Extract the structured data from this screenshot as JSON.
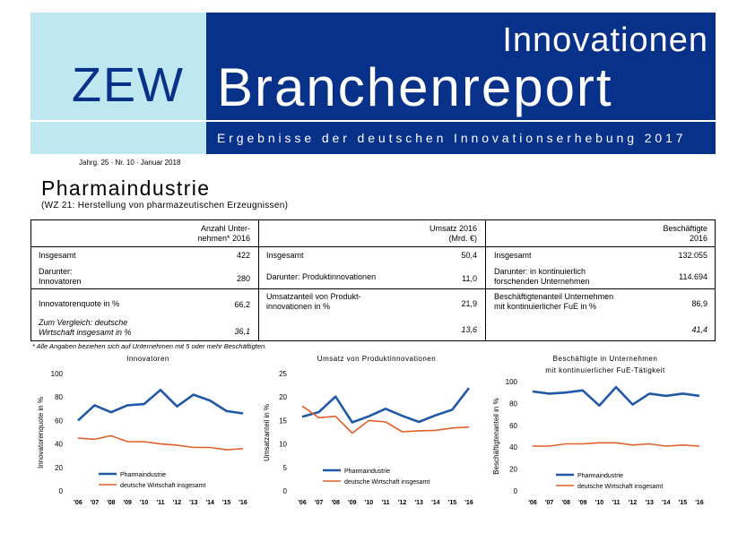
{
  "header": {
    "logo": "ZEW",
    "title_line1": "Innovationen",
    "title_line2": "Branchenreport",
    "subtitle": "Ergebnisse der deutschen Innovationserhebung 2017"
  },
  "issue_line": "Jahrg. 25 · Nr. 10 · Januar 2018",
  "title": "Pharmaindustrie",
  "subtitle": "(WZ 21: Herstellung von pharmazeutischen Erzeugnissen)",
  "table": {
    "col1_header_a": "Anzahl Unter-",
    "col1_header_b": "nehmen* 2016",
    "col2_header_a": "Umsatz 2016",
    "col2_header_b": "(Mrd. €)",
    "col3_header_a": "Beschäftigte",
    "col3_header_b": "2016",
    "r1": {
      "l1": "Insgesamt",
      "v1": "422",
      "l2": "Insgesamt",
      "v2": "50,4",
      "l3": "Insgesamt",
      "v3": "132.055"
    },
    "r2": {
      "l1a": "Darunter:",
      "l1b": "Innovatoren",
      "v1": "280",
      "l2": "Darunter: Produktinnovationen",
      "v2": "11,0",
      "l3a": "Darunter: in kontinuierlich",
      "l3b": "forschenden Unternehmen",
      "v3": "114.694"
    },
    "r3": {
      "l1": "Innovatorenquote in %",
      "v1": "66,2",
      "l2a": "Umsatzanteil von Produkt-",
      "l2b": "innovationen in %",
      "v2": "21,9",
      "l3a": "Beschäftigtenanteil Unternehmen",
      "l3b": "mit kontinuierlicher FuE in %",
      "v3": "86,9"
    },
    "r4": {
      "l1a": "Zum Vergleich: deutsche",
      "l1b": "Wirtschaft insgesamt in %",
      "v1": "36,1",
      "v2": "13,6",
      "v3": "41,4"
    }
  },
  "footnote": "* Alle Angaben beziehen sich auf Unternehmen mit 5 oder mehr Beschäftigten.",
  "colors": {
    "pharma": "#2158a8",
    "economy": "#e0602a",
    "header_dark": "#08318a",
    "header_light": "#bfe7f0"
  },
  "chart_data": [
    {
      "type": "line",
      "title": "Innovatoren",
      "title_line2": "",
      "ylabel": "Innovatorenquote in %",
      "x": [
        "'06",
        "'07",
        "'08",
        "'09",
        "'10",
        "'11",
        "'12",
        "'13",
        "'14",
        "'15",
        "'16"
      ],
      "ylim": [
        0,
        100
      ],
      "yticks": [
        0,
        20,
        40,
        60,
        80,
        100
      ],
      "series": [
        {
          "name": "Pharmaindustrie",
          "values": [
            60,
            73,
            67,
            73,
            74,
            86,
            72,
            82,
            77,
            68,
            66
          ]
        },
        {
          "name": "deutsche Wirtschaft insgesamt",
          "values": [
            45,
            44,
            47,
            42,
            42,
            40,
            39,
            37,
            37,
            35,
            36
          ]
        }
      ]
    },
    {
      "type": "line",
      "title": "Umsatz von Produktinnovationen",
      "title_line2": "",
      "ylabel": "Umsatzanteil in %",
      "x": [
        "'06",
        "'07",
        "'08",
        "'09",
        "'10",
        "'11",
        "'12",
        "'13",
        "'14",
        "'15",
        "'16"
      ],
      "ylim": [
        0,
        25
      ],
      "yticks": [
        0,
        5,
        10,
        15,
        20,
        25
      ],
      "series": [
        {
          "name": "Pharmaindustrie",
          "values": [
            15.8,
            16.8,
            20.1,
            14.6,
            15.9,
            17.5,
            16,
            14.7,
            16.1,
            17.3,
            21.9
          ]
        },
        {
          "name": "deutsche Wirtschaft insgesamt",
          "values": [
            18.1,
            15.6,
            15.9,
            12.3,
            15,
            14.7,
            12.6,
            12.8,
            12.9,
            13.4,
            13.6
          ]
        }
      ]
    },
    {
      "type": "line",
      "title": "Beschäftigte in Unternehmen",
      "title_line2": "mit kontinuierlicher FuE-Tätigkeit",
      "ylabel": "Beschäftigtenanteil in %",
      "x": [
        "'06",
        "'07",
        "'08",
        "'09",
        "'10",
        "'11",
        "'12",
        "'13",
        "'14",
        "'15",
        "'16"
      ],
      "ylim": [
        0,
        100
      ],
      "yticks": [
        0,
        20,
        40,
        60,
        80,
        100
      ],
      "series": [
        {
          "name": "Pharmaindustrie",
          "values": [
            91,
            89,
            90,
            92,
            78,
            95,
            79,
            89,
            87,
            89,
            87
          ]
        },
        {
          "name": "deutsche Wirtschaft insgesamt",
          "values": [
            41,
            41,
            43,
            43,
            44,
            44,
            42,
            43,
            41,
            42,
            41
          ]
        }
      ]
    }
  ]
}
